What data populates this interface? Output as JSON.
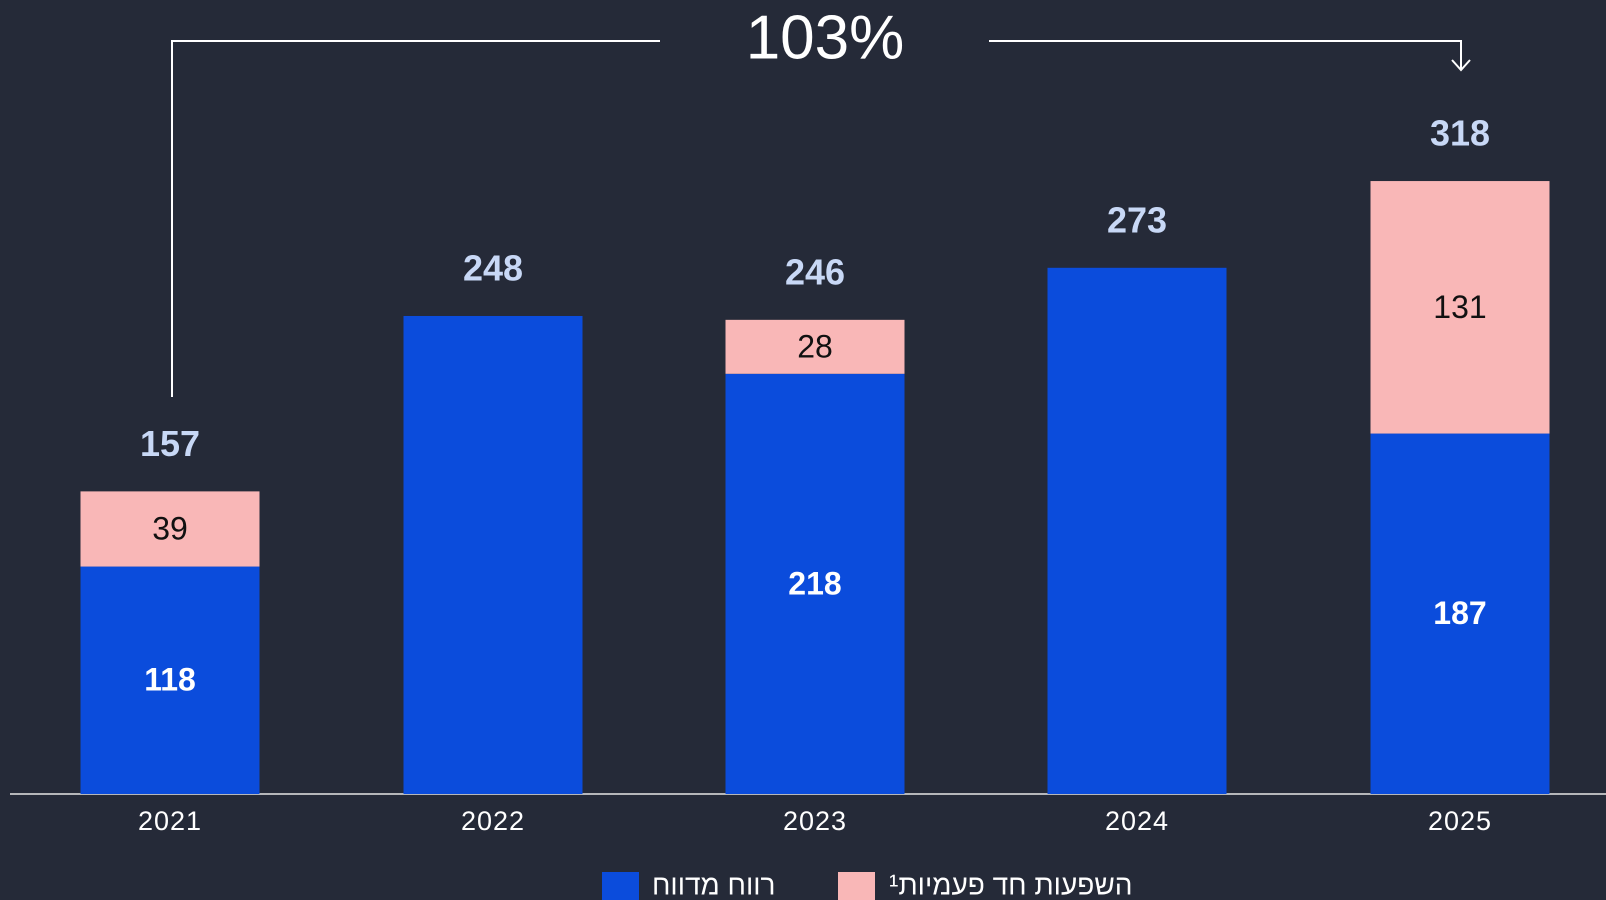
{
  "chart_data": {
    "type": "stacked_bar",
    "annotation": "103%",
    "categories": [
      "2021",
      "2022",
      "2023",
      "2024",
      "2025"
    ],
    "series": [
      {
        "name": "רווח מדווח",
        "color": "#0b4cdc",
        "values": [
          118,
          248,
          218,
          273,
          187
        ],
        "value_labels": [
          "118",
          null,
          "218",
          null,
          "187"
        ]
      },
      {
        "name": "השפעות חד פעמיות¹",
        "color": "#f9b7b7",
        "values": [
          39,
          null,
          28,
          null,
          131
        ],
        "value_labels": [
          "39",
          null,
          "28",
          null,
          "131"
        ]
      }
    ],
    "totals": [
      157,
      248,
      246,
      273,
      318
    ],
    "ylim": [
      0,
      400
    ]
  }
}
